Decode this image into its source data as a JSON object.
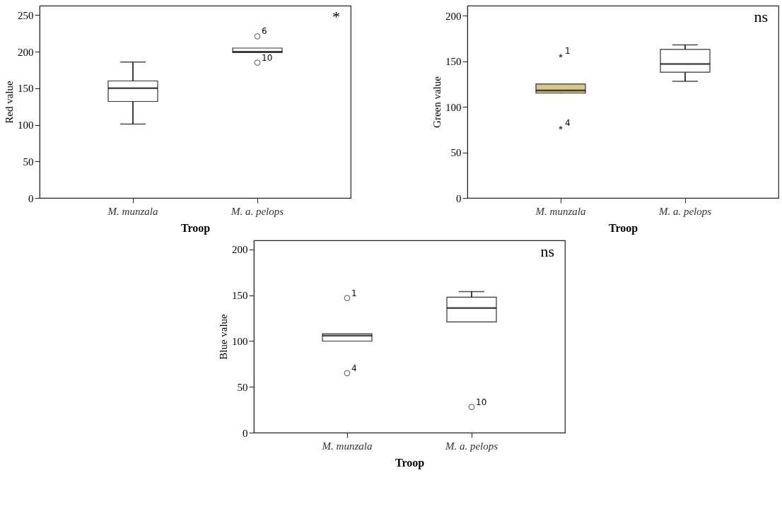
{
  "chart_data": [
    {
      "type": "box",
      "xlabel": "Troop",
      "ylabel": "Red value",
      "categories": [
        "M. munzala",
        "M. a. pelops"
      ],
      "colors": [
        "#ffffff",
        "#ffffff"
      ],
      "marker": "circle",
      "grid": false,
      "ylim": [
        0,
        263
      ],
      "yticks": [
        0,
        50,
        100,
        150,
        200,
        250
      ],
      "boxes": [
        {
          "low": 101,
          "q1": 132,
          "median": 150,
          "q3": 160,
          "high": 186
        },
        {
          "low": 199,
          "q1": 199,
          "median": 200,
          "q3": 205,
          "high": 205,
          "outliers": [
            221,
            185
          ]
        }
      ],
      "annotations": [
        "6",
        "10",
        "*"
      ]
    },
    {
      "type": "box",
      "xlabel": "Troop",
      "ylabel": "Green value",
      "categories": [
        "M. munzala",
        "M. a. pelops"
      ],
      "colors": [
        "#d4c88a",
        "#ffffff"
      ],
      "marker": "star",
      "grid": false,
      "ylim": [
        0,
        211
      ],
      "yticks": [
        0,
        50,
        100,
        150,
        200
      ],
      "boxes": [
        {
          "low": 115,
          "q1": 115,
          "median": 118,
          "q3": 125,
          "high": 125,
          "outliers": [
            156,
            77
          ]
        },
        {
          "low": 128,
          "q1": 138,
          "median": 147,
          "q3": 163,
          "high": 168
        }
      ],
      "annotations": [
        "1",
        "4",
        "ns"
      ]
    },
    {
      "type": "box",
      "xlabel": "Troop",
      "ylabel": "Blue value",
      "categories": [
        "M. munzala",
        "M. a. pelops"
      ],
      "colors": [
        "#ffffff",
        "#ffffff"
      ],
      "marker": "circle",
      "grid": false,
      "ylim": [
        0,
        210
      ],
      "yticks": [
        0,
        50,
        100,
        150,
        200
      ],
      "boxes": [
        {
          "low": 100,
          "q1": 100,
          "median": 106,
          "q3": 108,
          "high": 108,
          "outliers": [
            147,
            65
          ]
        },
        {
          "low": 121,
          "q1": 121,
          "median": 136,
          "q3": 148,
          "high": 154,
          "outliers": [
            28
          ]
        }
      ],
      "annotations": [
        "1",
        "4",
        "10",
        "ns"
      ]
    }
  ]
}
